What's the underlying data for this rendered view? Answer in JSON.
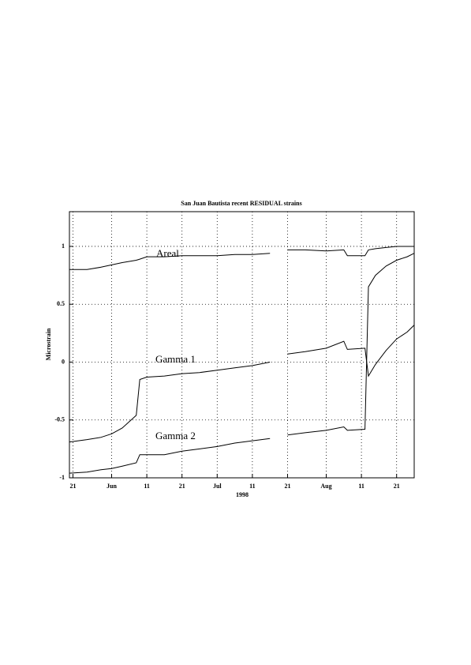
{
  "chart_data": {
    "type": "line",
    "title": "San Juan Bautista recent RESIDUAL strains",
    "ylabel": "Microstrain",
    "xlabel": "1998",
    "annotations": [
      "Areal",
      "Gamma 1",
      "Gamma 2"
    ],
    "x": [
      "1998-05-20",
      "1998-05-25",
      "1998-05-29",
      "1998-06-01",
      "1998-06-04",
      "1998-06-08",
      "1998-06-09",
      "1998-06-11",
      "1998-06-16",
      "1998-06-21",
      "1998-06-26",
      "1998-07-01",
      "1998-07-06",
      "1998-07-11",
      "1998-07-16",
      "1998-07-18",
      "1998-07-21",
      "1998-07-26",
      "1998-08-01",
      "1998-08-06",
      "1998-08-07",
      "1998-08-12",
      "1998-08-13",
      "1998-08-15",
      "1998-08-18",
      "1998-08-21",
      "1998-08-24",
      "1998-08-26"
    ],
    "series": [
      {
        "name": "Areal",
        "color": "#000000",
        "values": [
          0.8,
          0.8,
          0.82,
          0.84,
          0.86,
          0.88,
          0.89,
          0.91,
          0.91,
          0.92,
          0.92,
          0.92,
          0.93,
          0.93,
          0.94,
          null,
          0.97,
          0.97,
          0.96,
          0.97,
          0.92,
          0.92,
          0.97,
          0.98,
          0.99,
          1.0,
          1.0,
          1.0
        ]
      },
      {
        "name": "Gamma 1",
        "color": "#000000",
        "values": [
          -0.69,
          -0.67,
          -0.65,
          -0.62,
          -0.57,
          -0.46,
          -0.15,
          -0.13,
          -0.12,
          -0.1,
          -0.09,
          -0.07,
          -0.05,
          -0.03,
          0.0,
          null,
          0.07,
          0.09,
          0.12,
          0.18,
          0.11,
          0.12,
          -0.12,
          -0.02,
          0.1,
          0.2,
          0.26,
          0.32
        ]
      },
      {
        "name": "Gamma 2",
        "color": "#000000",
        "values": [
          -0.96,
          -0.95,
          -0.93,
          -0.92,
          -0.9,
          -0.87,
          -0.8,
          -0.8,
          -0.8,
          -0.77,
          -0.75,
          -0.73,
          -0.7,
          -0.68,
          -0.66,
          null,
          -0.63,
          -0.61,
          -0.59,
          -0.56,
          -0.59,
          -0.58,
          0.65,
          0.75,
          0.83,
          0.88,
          0.91,
          0.94
        ]
      }
    ],
    "xlim": [
      "1998-05-20",
      "1998-08-26"
    ],
    "xticks": [
      {
        "value": "1998-05-21",
        "label": "21"
      },
      {
        "value": "1998-06-01",
        "label": "Jun"
      },
      {
        "value": "1998-06-11",
        "label": "11"
      },
      {
        "value": "1998-06-21",
        "label": "21"
      },
      {
        "value": "1998-07-01",
        "label": "Jul"
      },
      {
        "value": "1998-07-11",
        "label": "11"
      },
      {
        "value": "1998-07-21",
        "label": "21"
      },
      {
        "value": "1998-08-01",
        "label": "Aug"
      },
      {
        "value": "1998-08-11",
        "label": "11"
      },
      {
        "value": "1998-08-21",
        "label": "21"
      }
    ],
    "ylim": [
      -1,
      1.3
    ],
    "yticks": [
      -1,
      -0.5,
      0,
      0.5,
      1
    ],
    "grid": true
  }
}
